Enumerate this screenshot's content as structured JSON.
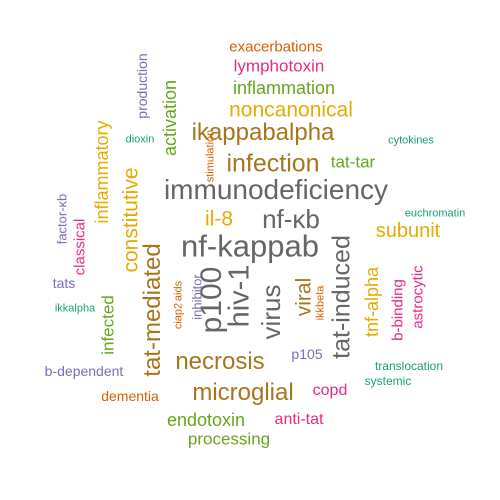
{
  "colors": {
    "teal": "#1b9e77",
    "orange": "#d95f02",
    "purple": "#7570b3",
    "pink": "#e7298a",
    "green": "#66a61e",
    "gold": "#e6ab02",
    "brown": "#a6761d",
    "gray": "#666666"
  },
  "words": [
    {
      "text": "nf-kappab",
      "color": "gray",
      "orientation": "horizontal"
    },
    {
      "text": "immunodeficiency",
      "color": "gray",
      "orientation": "horizontal"
    },
    {
      "text": "hiv-1",
      "color": "gray",
      "orientation": "vertical"
    },
    {
      "text": "p100",
      "color": "gray",
      "orientation": "vertical"
    },
    {
      "text": "nf-κb",
      "color": "gray",
      "orientation": "horizontal"
    },
    {
      "text": "tat-induced",
      "color": "gray",
      "orientation": "vertical"
    },
    {
      "text": "virus",
      "color": "gray",
      "orientation": "vertical"
    },
    {
      "text": "infection",
      "color": "brown",
      "orientation": "horizontal"
    },
    {
      "text": "tat-mediated",
      "color": "brown",
      "orientation": "vertical"
    },
    {
      "text": "ikappabalpha",
      "color": "brown",
      "orientation": "horizontal"
    },
    {
      "text": "necrosis",
      "color": "brown",
      "orientation": "horizontal"
    },
    {
      "text": "microglial",
      "color": "brown",
      "orientation": "horizontal"
    },
    {
      "text": "viral",
      "color": "brown",
      "orientation": "vertical"
    },
    {
      "text": "constitutive",
      "color": "gold",
      "orientation": "vertical"
    },
    {
      "text": "noncanonical",
      "color": "gold",
      "orientation": "horizontal"
    },
    {
      "text": "il-8",
      "color": "gold",
      "orientation": "horizontal"
    },
    {
      "text": "subunit",
      "color": "gold",
      "orientation": "horizontal"
    },
    {
      "text": "tnf-alpha",
      "color": "gold",
      "orientation": "vertical"
    },
    {
      "text": "inflammatory",
      "color": "gold",
      "orientation": "vertical"
    },
    {
      "text": "inflammation",
      "color": "green",
      "orientation": "horizontal"
    },
    {
      "text": "activation",
      "color": "green",
      "orientation": "vertical"
    },
    {
      "text": "tat-tar",
      "color": "green",
      "orientation": "horizontal"
    },
    {
      "text": "infected",
      "color": "green",
      "orientation": "vertical"
    },
    {
      "text": "endotoxin",
      "color": "green",
      "orientation": "horizontal"
    },
    {
      "text": "processing",
      "color": "green",
      "orientation": "horizontal"
    },
    {
      "text": "lymphotoxin",
      "color": "pink",
      "orientation": "horizontal"
    },
    {
      "text": "classical",
      "color": "pink",
      "orientation": "vertical"
    },
    {
      "text": "b-binding",
      "color": "pink",
      "orientation": "vertical"
    },
    {
      "text": "astrocytic",
      "color": "pink",
      "orientation": "vertical"
    },
    {
      "text": "copd",
      "color": "pink",
      "orientation": "horizontal"
    },
    {
      "text": "anti-tat",
      "color": "pink",
      "orientation": "horizontal"
    },
    {
      "text": "exacerbations",
      "color": "orange",
      "orientation": "horizontal"
    },
    {
      "text": "stimulation",
      "color": "orange",
      "orientation": "vertical"
    },
    {
      "text": "ciap2",
      "color": "orange",
      "orientation": "vertical"
    },
    {
      "text": "aids",
      "color": "orange",
      "orientation": "vertical"
    },
    {
      "text": "ikkbeta",
      "color": "orange",
      "orientation": "vertical"
    },
    {
      "text": "dementia",
      "color": "orange",
      "orientation": "horizontal"
    },
    {
      "text": "production",
      "color": "purple",
      "orientation": "vertical"
    },
    {
      "text": "factor-κb",
      "color": "purple",
      "orientation": "vertical"
    },
    {
      "text": "tats",
      "color": "purple",
      "orientation": "horizontal"
    },
    {
      "text": "inhibitor",
      "color": "purple",
      "orientation": "vertical"
    },
    {
      "text": "p105",
      "color": "purple",
      "orientation": "horizontal"
    },
    {
      "text": "b-dependent",
      "color": "purple",
      "orientation": "horizontal"
    },
    {
      "text": "dioxin",
      "color": "teal",
      "orientation": "horizontal"
    },
    {
      "text": "cytokines",
      "color": "teal",
      "orientation": "horizontal"
    },
    {
      "text": "euchromatin",
      "color": "teal",
      "orientation": "horizontal"
    },
    {
      "text": "ikkalpha",
      "color": "teal",
      "orientation": "horizontal"
    },
    {
      "text": "translocation",
      "color": "teal",
      "orientation": "horizontal"
    },
    {
      "text": "systemic",
      "color": "teal",
      "orientation": "horizontal"
    }
  ]
}
